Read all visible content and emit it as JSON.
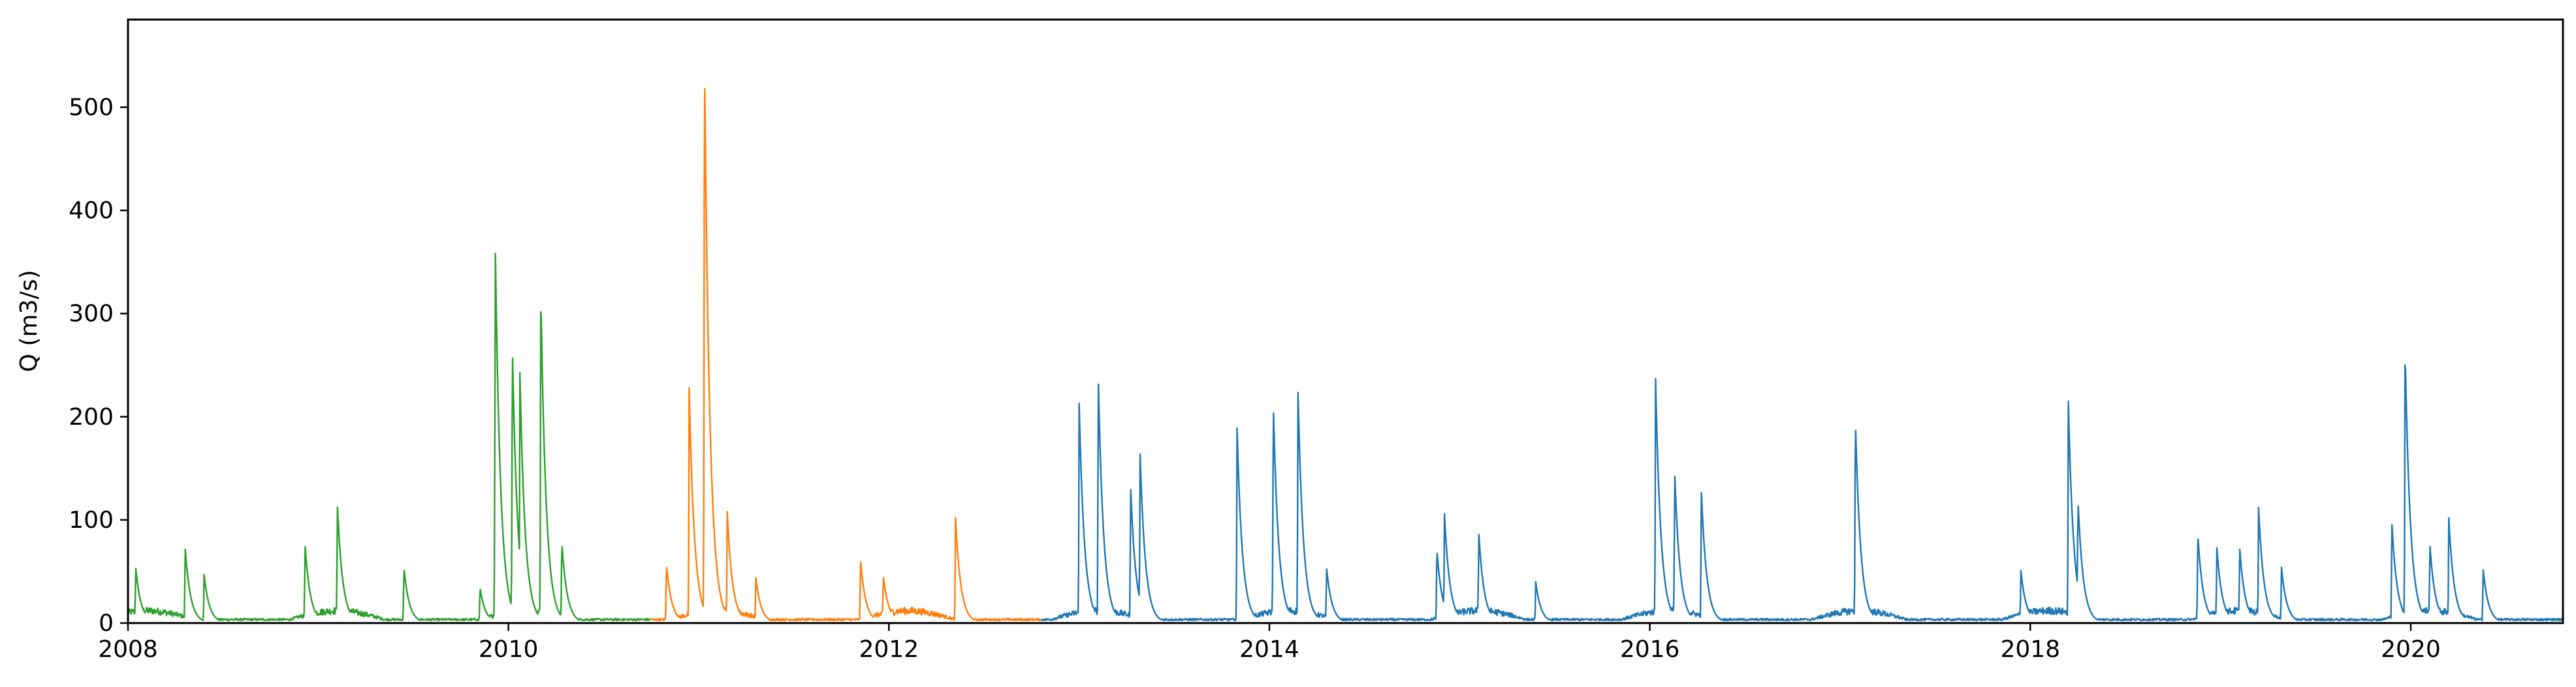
{
  "chart_data": {
    "type": "line",
    "title": "",
    "xlabel": "",
    "ylabel": "Q (m3/s)",
    "xlim": [
      2008.0,
      2020.8
    ],
    "ylim": [
      0,
      585
    ],
    "x_ticks": [
      2008,
      2010,
      2012,
      2014,
      2016,
      2018,
      2020
    ],
    "x_tick_labels": [
      "2008",
      "2010",
      "2012",
      "2014",
      "2016",
      "2018",
      "2020"
    ],
    "y_ticks": [
      0,
      100,
      200,
      300,
      400,
      500
    ],
    "y_tick_labels": [
      "0",
      "100",
      "200",
      "300",
      "400",
      "500"
    ],
    "grid": false,
    "legend": "none",
    "series": [
      {
        "color": "#2ca02c",
        "x_range": [
          2008.0,
          2010.75
        ],
        "peaks": [
          [
            2008.04,
            55
          ],
          [
            2008.3,
            75
          ],
          [
            2008.4,
            47
          ],
          [
            2008.93,
            78
          ],
          [
            2009.1,
            118
          ],
          [
            2009.45,
            55
          ],
          [
            2009.85,
            35
          ],
          [
            2009.93,
            378
          ],
          [
            2010.02,
            275
          ],
          [
            2010.06,
            245
          ],
          [
            2010.17,
            323
          ],
          [
            2010.28,
            80
          ]
        ]
      },
      {
        "color": "#ff7f0e",
        "x_range": [
          2010.75,
          2012.8
        ],
        "peaks": [
          [
            2010.83,
            58
          ],
          [
            2010.95,
            228
          ],
          [
            2011.03,
            560
          ],
          [
            2011.15,
            108
          ],
          [
            2011.3,
            45
          ],
          [
            2011.85,
            62
          ],
          [
            2011.97,
            47
          ],
          [
            2012.35,
            102
          ]
        ]
      },
      {
        "color": "#1f77b4",
        "x_range": [
          2012.8,
          2020.8
        ],
        "peaks": [
          [
            2013.0,
            213
          ],
          [
            2013.1,
            243
          ],
          [
            2013.27,
            135
          ],
          [
            2013.32,
            167
          ],
          [
            2013.83,
            190
          ],
          [
            2014.02,
            218
          ],
          [
            2014.15,
            229
          ],
          [
            2014.3,
            55
          ],
          [
            2014.88,
            73
          ],
          [
            2014.92,
            108
          ],
          [
            2015.1,
            90
          ],
          [
            2015.4,
            40
          ],
          [
            2016.03,
            238
          ],
          [
            2016.13,
            150
          ],
          [
            2016.27,
            132
          ],
          [
            2017.08,
            202
          ],
          [
            2017.95,
            52
          ],
          [
            2018.2,
            215
          ],
          [
            2018.25,
            122
          ],
          [
            2018.88,
            88
          ],
          [
            2018.98,
            75
          ],
          [
            2019.1,
            75
          ],
          [
            2019.2,
            112
          ],
          [
            2019.32,
            55
          ],
          [
            2019.9,
            100
          ],
          [
            2019.97,
            268
          ],
          [
            2020.1,
            78
          ],
          [
            2020.2,
            102
          ],
          [
            2020.38,
            53
          ]
        ]
      }
    ]
  }
}
